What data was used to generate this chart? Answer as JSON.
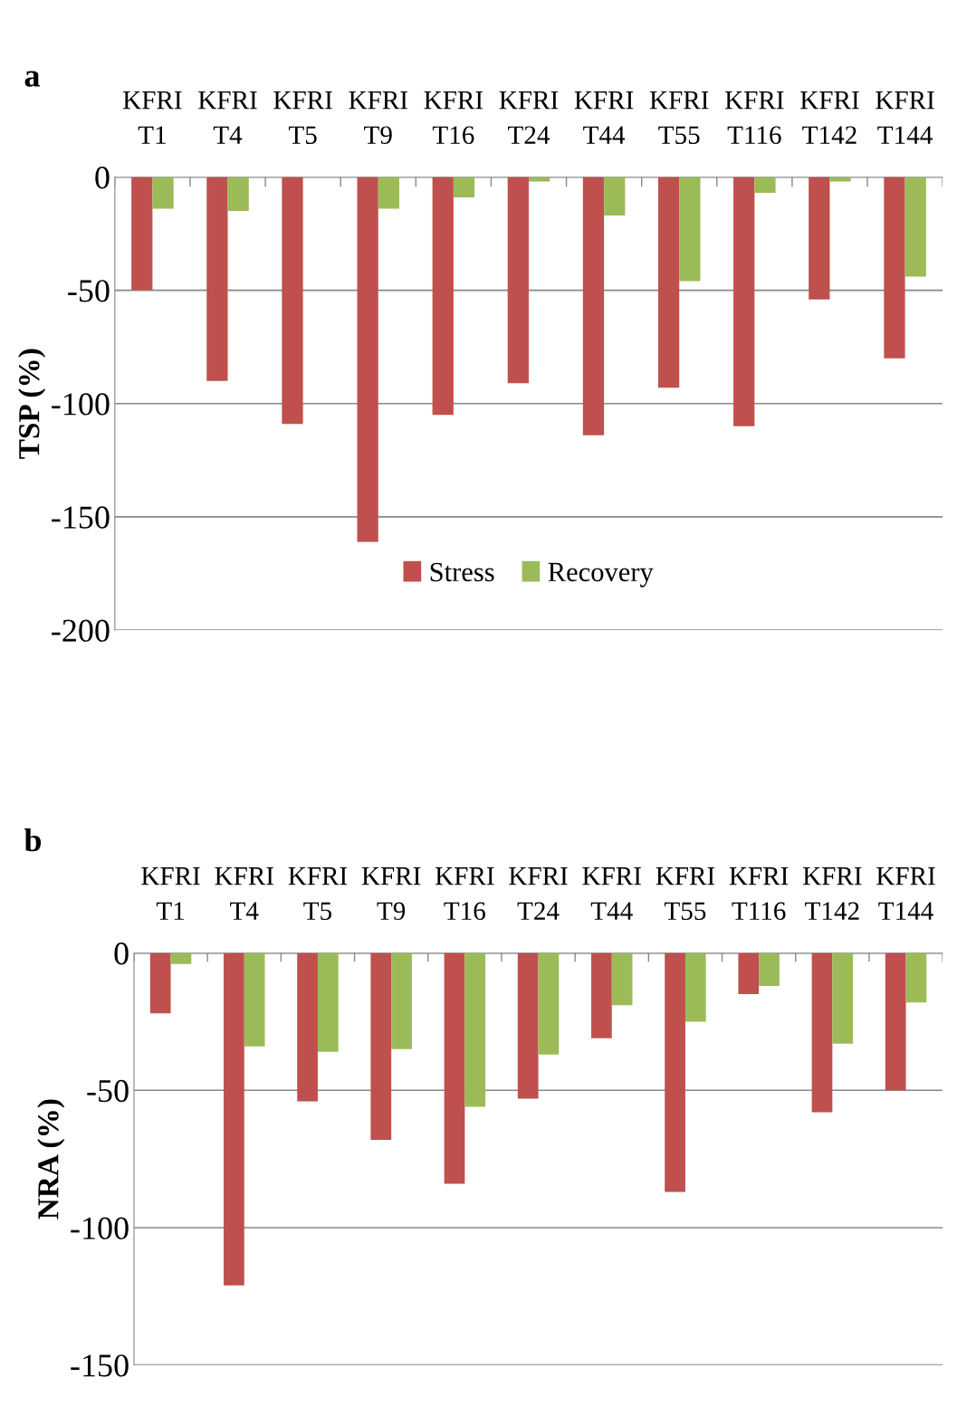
{
  "chart_data": [
    {
      "type": "bar",
      "title": "a",
      "ylabel": "TSP (%)",
      "categories": [
        "KFRI\nT1",
        "KFRI\nT4",
        "KFRI\nT5",
        "KFRI\nT9",
        "KFRI\nT16",
        "KFRI\nT24",
        "KFRI\nT44",
        "KFRI\nT55",
        "KFRI\nT116",
        "KFRI\nT142",
        "KFRI\nT144"
      ],
      "series": [
        {
          "name": "Stress",
          "color": "#c0504d",
          "values": [
            -50,
            -90,
            -109,
            -161,
            -105,
            -91,
            -114,
            -93,
            -110,
            -54,
            -80
          ]
        },
        {
          "name": "Recovery",
          "color": "#9bbb59",
          "values": [
            -14,
            -15,
            0,
            -14,
            -9,
            -2,
            -17,
            -46,
            -7,
            -2,
            -44
          ]
        }
      ],
      "ylim": [
        -200,
        0
      ],
      "yticks": [
        -200,
        -150,
        -100,
        -50,
        0
      ],
      "grid": "y",
      "legend": "bottom"
    },
    {
      "type": "bar",
      "title": "b",
      "ylabel": "NRA (%)",
      "categories": [
        "KFRI\nT1",
        "KFRI\nT4",
        "KFRI\nT5",
        "KFRI\nT9",
        "KFRI\nT16",
        "KFRI\nT24",
        "KFRI\nT44",
        "KFRI\nT55",
        "KFRI\nT116",
        "KFRI\nT142",
        "KFRI\nT144"
      ],
      "series": [
        {
          "color": "#c0504d",
          "values": [
            -22,
            -121,
            -54,
            -68,
            -84,
            -53,
            -31,
            -87,
            -15,
            -58,
            -50
          ]
        },
        {
          "color": "#9bbb59",
          "values": [
            -4,
            -34,
            -36,
            -35,
            -56,
            -37,
            -19,
            -25,
            -12,
            -33,
            -18
          ]
        }
      ],
      "ylim": [
        -150,
        0
      ],
      "yticks": [
        -150,
        -100,
        -50,
        0
      ],
      "grid": "y"
    }
  ]
}
